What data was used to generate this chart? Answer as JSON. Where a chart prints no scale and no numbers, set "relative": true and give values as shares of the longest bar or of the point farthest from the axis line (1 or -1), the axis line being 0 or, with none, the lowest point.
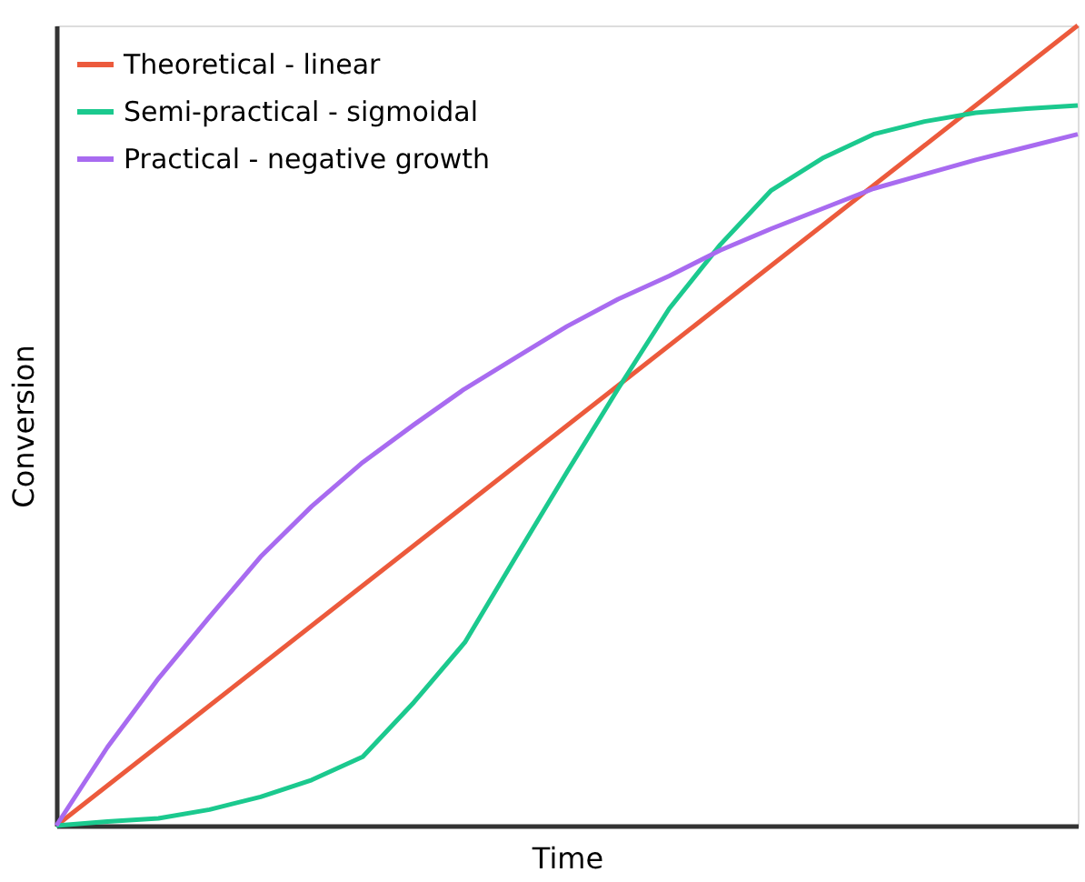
{
  "chart_data": {
    "type": "line",
    "relative": true,
    "xlabel": "Time",
    "ylabel": "Conversion",
    "legend": "top left",
    "marker": "none",
    "line_style": "solid",
    "tick_labels": false,
    "categories": [
      null,
      null,
      null,
      null,
      null,
      null,
      null,
      null,
      null,
      null,
      null,
      null,
      null,
      null,
      null,
      null,
      null,
      null,
      null,
      null,
      null
    ],
    "series": [
      {
        "name": "Theoretical - linear",
        "color": "#ec5a3c",
        "values": [
          0,
          0.05,
          0.1,
          0.15,
          0.2,
          0.25,
          0.3,
          0.35,
          0.4,
          0.45,
          0.5,
          0.55,
          0.6,
          0.65,
          0.7,
          0.75,
          0.8,
          0.85,
          0.9,
          0.95,
          1
        ]
      },
      {
        "name": "Semi-practical - sigmoidal",
        "color": "#1bc98e",
        "values": [
          0,
          0.005,
          0.009,
          0.02,
          0.036,
          0.057,
          0.086,
          0.154,
          0.229,
          0.336,
          0.442,
          0.546,
          0.646,
          0.726,
          0.794,
          0.834,
          0.864,
          0.88,
          0.891,
          0.896,
          0.9
        ]
      },
      {
        "name": "Practical - negative growth",
        "color": "#a86bf0",
        "values": [
          0,
          0.098,
          0.184,
          0.261,
          0.336,
          0.399,
          0.454,
          0.501,
          0.546,
          0.585,
          0.624,
          0.658,
          0.687,
          0.719,
          0.746,
          0.771,
          0.796,
          0.814,
          0.832,
          0.848,
          0.864
        ]
      }
    ]
  }
}
